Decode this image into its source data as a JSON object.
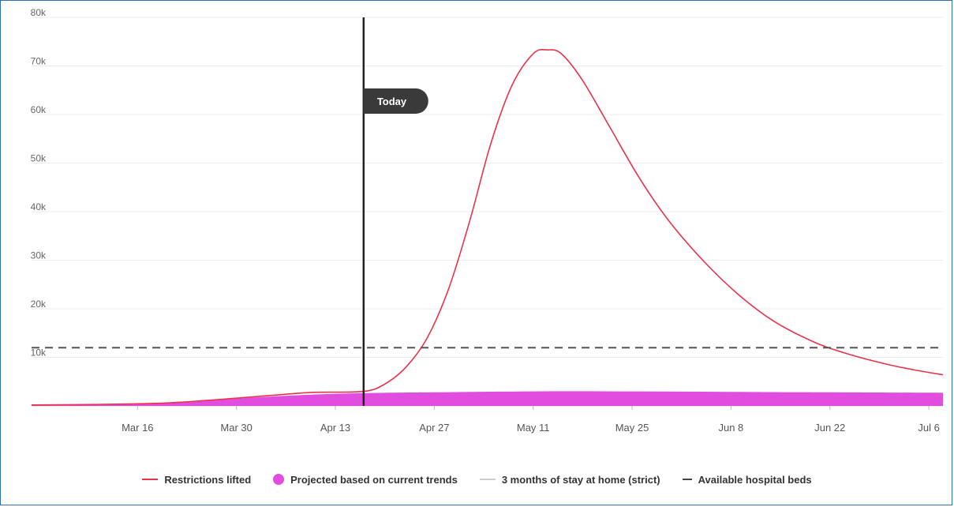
{
  "chart_data": {
    "type": "area",
    "title": "",
    "xlabel": "",
    "ylabel": "",
    "ylim": [
      0,
      80000
    ],
    "y_ticks": [
      {
        "value": 0,
        "label": ""
      },
      {
        "value": 10000,
        "label": "10k"
      },
      {
        "value": 20000,
        "label": "20k"
      },
      {
        "value": 30000,
        "label": "30k"
      },
      {
        "value": 40000,
        "label": "40k"
      },
      {
        "value": 50000,
        "label": "50k"
      },
      {
        "value": 60000,
        "label": "60k"
      },
      {
        "value": 70000,
        "label": "70k"
      },
      {
        "value": 80000,
        "label": "80k"
      }
    ],
    "x_start": "2020-03-01",
    "x_end": "2020-07-08",
    "x_ticks": [
      {
        "date": "2020-03-16",
        "label": "Mar 16"
      },
      {
        "date": "2020-03-30",
        "label": "Mar 30"
      },
      {
        "date": "2020-04-13",
        "label": "Apr 13"
      },
      {
        "date": "2020-04-27",
        "label": "Apr 27"
      },
      {
        "date": "2020-05-11",
        "label": "May 11"
      },
      {
        "date": "2020-05-25",
        "label": "May 25"
      },
      {
        "date": "2020-06-08",
        "label": "Jun 8"
      },
      {
        "date": "2020-06-22",
        "label": "Jun 22"
      },
      {
        "date": "2020-07-06",
        "label": "Jul 6"
      }
    ],
    "grid": true,
    "today": {
      "date": "2020-04-17",
      "label": "Today"
    },
    "hospital_beds": 12000,
    "series": [
      {
        "name": "Restrictions lifted",
        "type": "line",
        "color": "#e8334a",
        "points": [
          [
            "2020-03-01",
            200
          ],
          [
            "2020-03-10",
            300
          ],
          [
            "2020-03-20",
            600
          ],
          [
            "2020-03-30",
            1600
          ],
          [
            "2020-04-05",
            2300
          ],
          [
            "2020-04-10",
            2800
          ],
          [
            "2020-04-17",
            3000
          ],
          [
            "2020-04-20",
            4500
          ],
          [
            "2020-04-23",
            8000
          ],
          [
            "2020-04-26",
            14000
          ],
          [
            "2020-04-29",
            24000
          ],
          [
            "2020-05-02",
            38000
          ],
          [
            "2020-05-05",
            54000
          ],
          [
            "2020-05-08",
            66000
          ],
          [
            "2020-05-11",
            72500
          ],
          [
            "2020-05-13",
            73300
          ],
          [
            "2020-05-15",
            72500
          ],
          [
            "2020-05-18",
            67000
          ],
          [
            "2020-05-22",
            57000
          ],
          [
            "2020-05-26",
            47000
          ],
          [
            "2020-05-30",
            38500
          ],
          [
            "2020-06-04",
            30000
          ],
          [
            "2020-06-09",
            23000
          ],
          [
            "2020-06-14",
            17500
          ],
          [
            "2020-06-20",
            13000
          ],
          [
            "2020-06-25",
            10500
          ],
          [
            "2020-06-30",
            8600
          ],
          [
            "2020-07-04",
            7400
          ],
          [
            "2020-07-08",
            6400
          ]
        ]
      },
      {
        "name": "Projected based on current trends",
        "type": "area",
        "color": "#e04ddf",
        "points": [
          [
            "2020-03-01",
            100
          ],
          [
            "2020-03-10",
            200
          ],
          [
            "2020-03-20",
            500
          ],
          [
            "2020-03-30",
            1500
          ],
          [
            "2020-04-06",
            2100
          ],
          [
            "2020-04-13",
            2500
          ],
          [
            "2020-04-20",
            2700
          ],
          [
            "2020-04-27",
            2800
          ],
          [
            "2020-05-11",
            3000
          ],
          [
            "2020-05-25",
            3000
          ],
          [
            "2020-06-08",
            2900
          ],
          [
            "2020-06-22",
            2800
          ],
          [
            "2020-07-08",
            2700
          ]
        ]
      },
      {
        "name": "3 months of stay at home (strict)",
        "type": "line",
        "color": "#cccccc",
        "points": []
      },
      {
        "name": "Available hospital beds",
        "type": "dashed-line",
        "color": "#555555",
        "points": []
      }
    ]
  }
}
